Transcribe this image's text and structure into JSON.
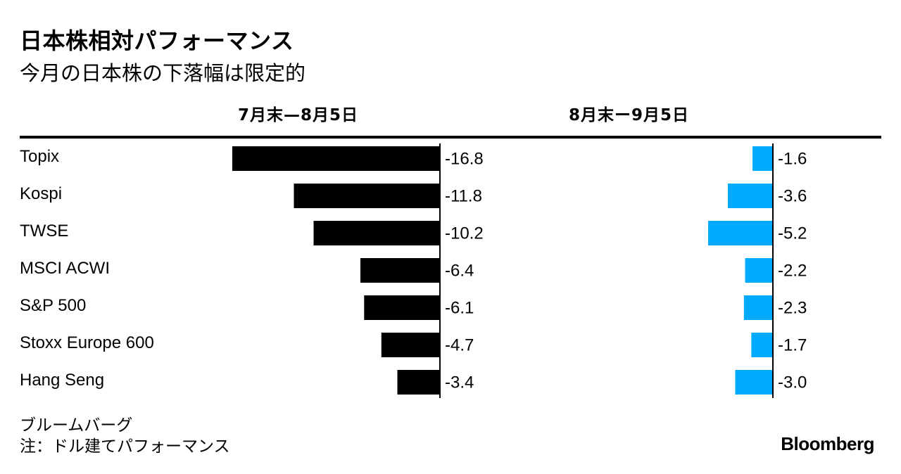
{
  "chart_data": {
    "type": "bar",
    "orientation": "horizontal",
    "title": "日本株相対パフォーマンス",
    "subtitle": "今月の日本株の下落幅は限定的",
    "categories": [
      "Topix",
      "Kospi",
      "TWSE",
      "MSCI ACWI",
      "S&P 500",
      "Stoxx Europe 600",
      "Hang Seng"
    ],
    "series": [
      {
        "name": "7月末—8月5日",
        "color": "#000000",
        "values": [
          -16.8,
          -11.8,
          -10.2,
          -6.4,
          -6.1,
          -4.7,
          -3.4
        ],
        "labels": [
          "-16.8",
          "-11.8",
          "-10.2",
          "-6.4",
          "-6.1",
          "-4.7",
          "-3.4"
        ]
      },
      {
        "name": "8月末ー9月5日",
        "color": "#00aaff",
        "values": [
          -1.6,
          -3.6,
          -5.2,
          -2.2,
          -2.3,
          -1.7,
          -3.0
        ],
        "labels": [
          "-1.6",
          "-3.6",
          "-5.2",
          "-2.2",
          "-2.3",
          "-1.7",
          "-3.0"
        ]
      }
    ],
    "xlabel": "",
    "ylabel": ""
  },
  "footer": {
    "source": "ブルームバーグ",
    "note": "注：ドル建てパフォーマンス",
    "logo": "Bloomberg"
  }
}
